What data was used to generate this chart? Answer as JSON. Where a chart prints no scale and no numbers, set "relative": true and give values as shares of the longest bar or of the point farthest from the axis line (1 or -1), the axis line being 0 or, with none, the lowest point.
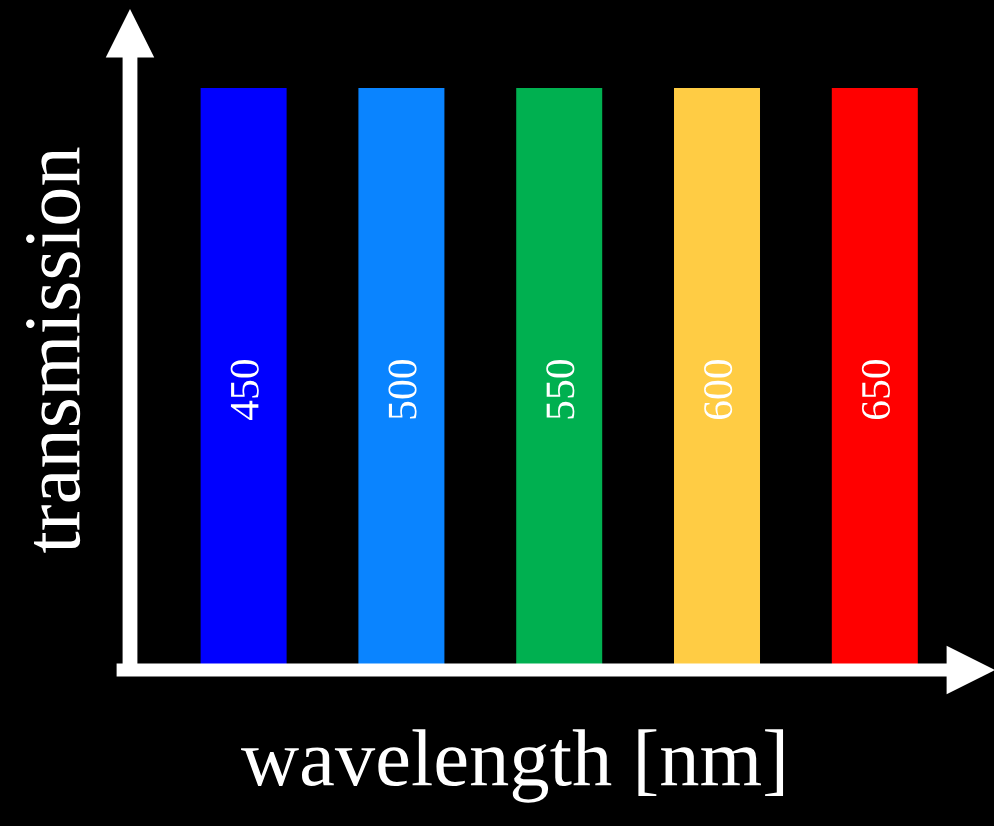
{
  "chart_data": {
    "type": "bar",
    "relative": true,
    "xlabel": "wavelength [nm]",
    "ylabel": "transmission",
    "categories": [
      "450",
      "500",
      "550",
      "600",
      "650"
    ],
    "values": [
      1,
      1,
      1,
      1,
      1
    ],
    "colors": [
      "#0000ff",
      "#0a84ff",
      "#00b050",
      "#ffcc44",
      "#ff0000"
    ]
  }
}
